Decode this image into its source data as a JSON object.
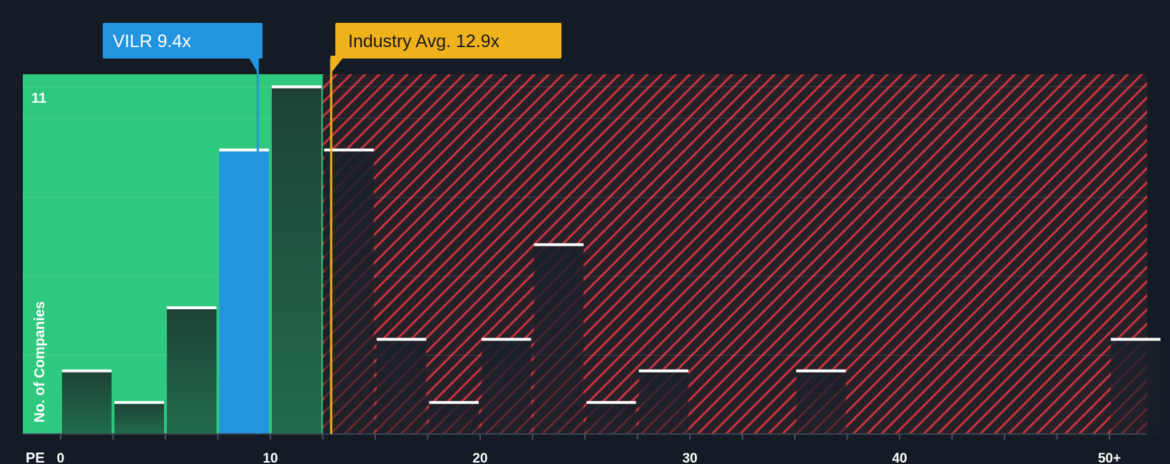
{
  "chart_data": {
    "type": "bar",
    "x_axis_label": "PE",
    "y_axis_label": "No. of Companies",
    "x_ticks": [
      "0",
      "10",
      "20",
      "30",
      "40",
      "50+"
    ],
    "x_tick_values": [
      0,
      10,
      20,
      30,
      40,
      50
    ],
    "x_range": [
      -1.8,
      51.8
    ],
    "y_max_label": "11",
    "y_range": [
      0,
      11.4
    ],
    "bin_width": 2.5,
    "bins": [
      {
        "start": 0,
        "value": 2,
        "highlight": false
      },
      {
        "start": 2.5,
        "value": 1,
        "highlight": false
      },
      {
        "start": 5,
        "value": 4,
        "highlight": false
      },
      {
        "start": 7.5,
        "value": 9,
        "highlight": true
      },
      {
        "start": 10,
        "value": 11,
        "highlight": false
      },
      {
        "start": 12.5,
        "value": 9,
        "highlight": false
      },
      {
        "start": 15,
        "value": 3,
        "highlight": false
      },
      {
        "start": 17.5,
        "value": 1,
        "highlight": false
      },
      {
        "start": 20,
        "value": 3,
        "highlight": false
      },
      {
        "start": 22.5,
        "value": 6,
        "highlight": false
      },
      {
        "start": 25,
        "value": 1,
        "highlight": false
      },
      {
        "start": 27.5,
        "value": 2,
        "highlight": false
      },
      {
        "start": 35,
        "value": 2,
        "highlight": false
      },
      {
        "start": 50,
        "value": 3,
        "highlight": false
      }
    ],
    "company": {
      "ticker": "VILR",
      "pe": 9.4,
      "label": "VILR 9.4x"
    },
    "industry": {
      "label": "Industry Avg. 12.9x",
      "pe": 12.9
    },
    "fair_zone_end": 12.5,
    "colors": {
      "background": "#151b24",
      "fair_zone": "#2ec97e",
      "over_zone": "#c9343d",
      "highlight_bar": "#2394e0",
      "bar_dark": "#1d2b27",
      "industry": "#f0b21b",
      "company": "#2394e0"
    }
  }
}
